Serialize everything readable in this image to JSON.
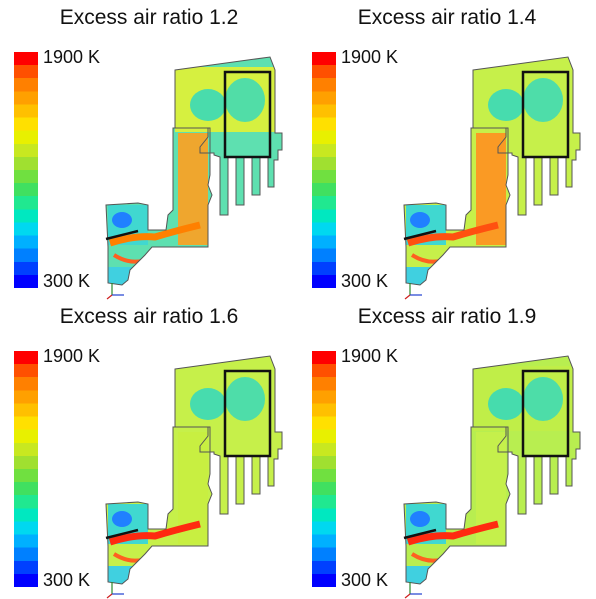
{
  "panels": [
    {
      "title": "Excess air ratio 1.2",
      "scale_max": "1900 K",
      "scale_min": "300 K"
    },
    {
      "title": "Excess air ratio 1.4",
      "scale_max": "1900 K",
      "scale_min": "300 K"
    },
    {
      "title": "Excess air ratio 1.6",
      "scale_max": "1900 K",
      "scale_min": "300 K"
    },
    {
      "title": "Excess air ratio 1.9",
      "scale_max": "1900 K",
      "scale_min": "300 K"
    }
  ],
  "colors": {
    "legend_stops": [
      "#0000ff",
      "#0040ff",
      "#0080ff",
      "#00b0ff",
      "#00d8f0",
      "#00e8c0",
      "#20e890",
      "#40e060",
      "#70e040",
      "#a0e030",
      "#c8e820",
      "#e8f000",
      "#ffe000",
      "#ffc000",
      "#ffa000",
      "#ff8000",
      "#ff5000",
      "#ff0000"
    ],
    "boiler_base": [
      "#5ee0b0",
      "#c6f04a",
      "#c6f04a",
      "#b8ee50"
    ],
    "upper_hot": [
      "#d6f040",
      "#c6f04a",
      "#c6f04a",
      "#c0ee48"
    ],
    "riser_core": [
      "#ffa020",
      "#ff9020",
      "#c8ee40",
      "#c6f04a"
    ],
    "flame": [
      "#ff8000",
      "#ff5010",
      "#ff2a10",
      "#ff2a10"
    ]
  }
}
